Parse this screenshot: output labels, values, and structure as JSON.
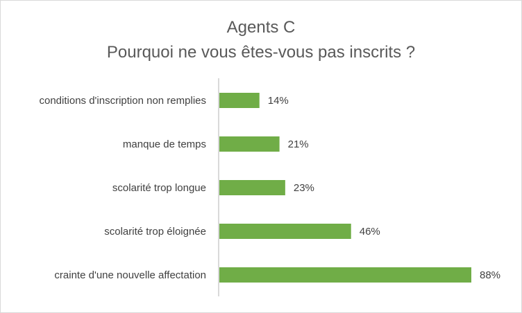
{
  "chart_data": {
    "type": "bar",
    "orientation": "horizontal",
    "title": "Agents C",
    "subtitle": "Pourquoi ne vous êtes-vous pas inscrits ?",
    "categories": [
      "conditions d'inscription non remplies",
      "manque de temps",
      "scolarité trop longue",
      "scolarité trop éloignée",
      "crainte d'une nouvelle affectation"
    ],
    "values": [
      14,
      21,
      23,
      46,
      88
    ],
    "data_labels": [
      "14%",
      "21%",
      "23%",
      "46%",
      "88%"
    ],
    "xlim": [
      0,
      100
    ],
    "unit": "%",
    "grid": false,
    "legend": "none",
    "bar_color": "#70ad47"
  }
}
